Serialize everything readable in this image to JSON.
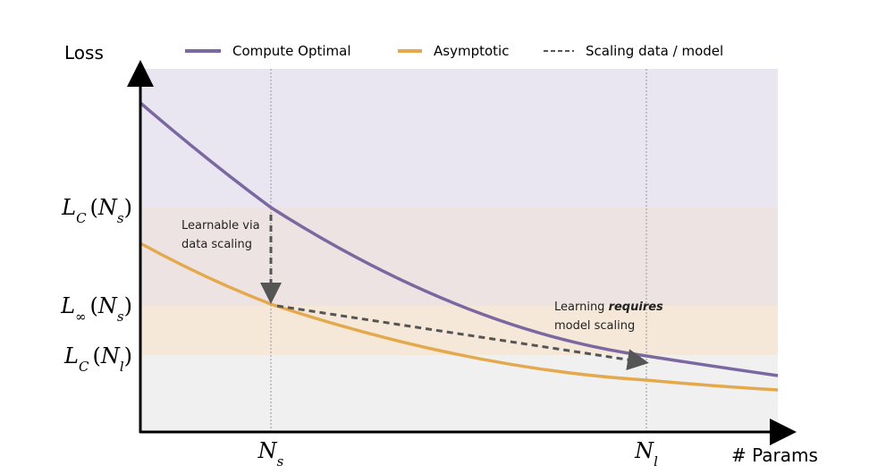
{
  "axes": {
    "y_title": "Loss",
    "x_title": "# Params"
  },
  "legend": [
    {
      "label": "Compute Optimal",
      "color": "#7b68a0"
    },
    {
      "label": "Asymptotic",
      "color": "#e5a94d"
    },
    {
      "label": "Scaling data / model",
      "color": "#555555"
    }
  ],
  "y_labels": [
    {
      "base": "L",
      "base_sub": "C",
      "open": "(",
      "arg": "N",
      "arg_sub": "s",
      "close": ")"
    },
    {
      "base": "L",
      "base_sub": "∞",
      "open": "(",
      "arg": "N",
      "arg_sub": "s",
      "close": ")"
    },
    {
      "base": "L",
      "base_sub": "C",
      "open": "(",
      "arg": "N",
      "arg_sub": "l",
      "close": ")"
    }
  ],
  "x_labels": [
    {
      "base": "N",
      "sub": "s"
    },
    {
      "base": "N",
      "sub": "l"
    }
  ],
  "annotations": [
    {
      "lines": [
        "Learnable via",
        "data scaling"
      ]
    },
    {
      "line1_start": "Learning ",
      "line1_emphasis": "requires",
      "line2": "model scaling"
    }
  ]
}
